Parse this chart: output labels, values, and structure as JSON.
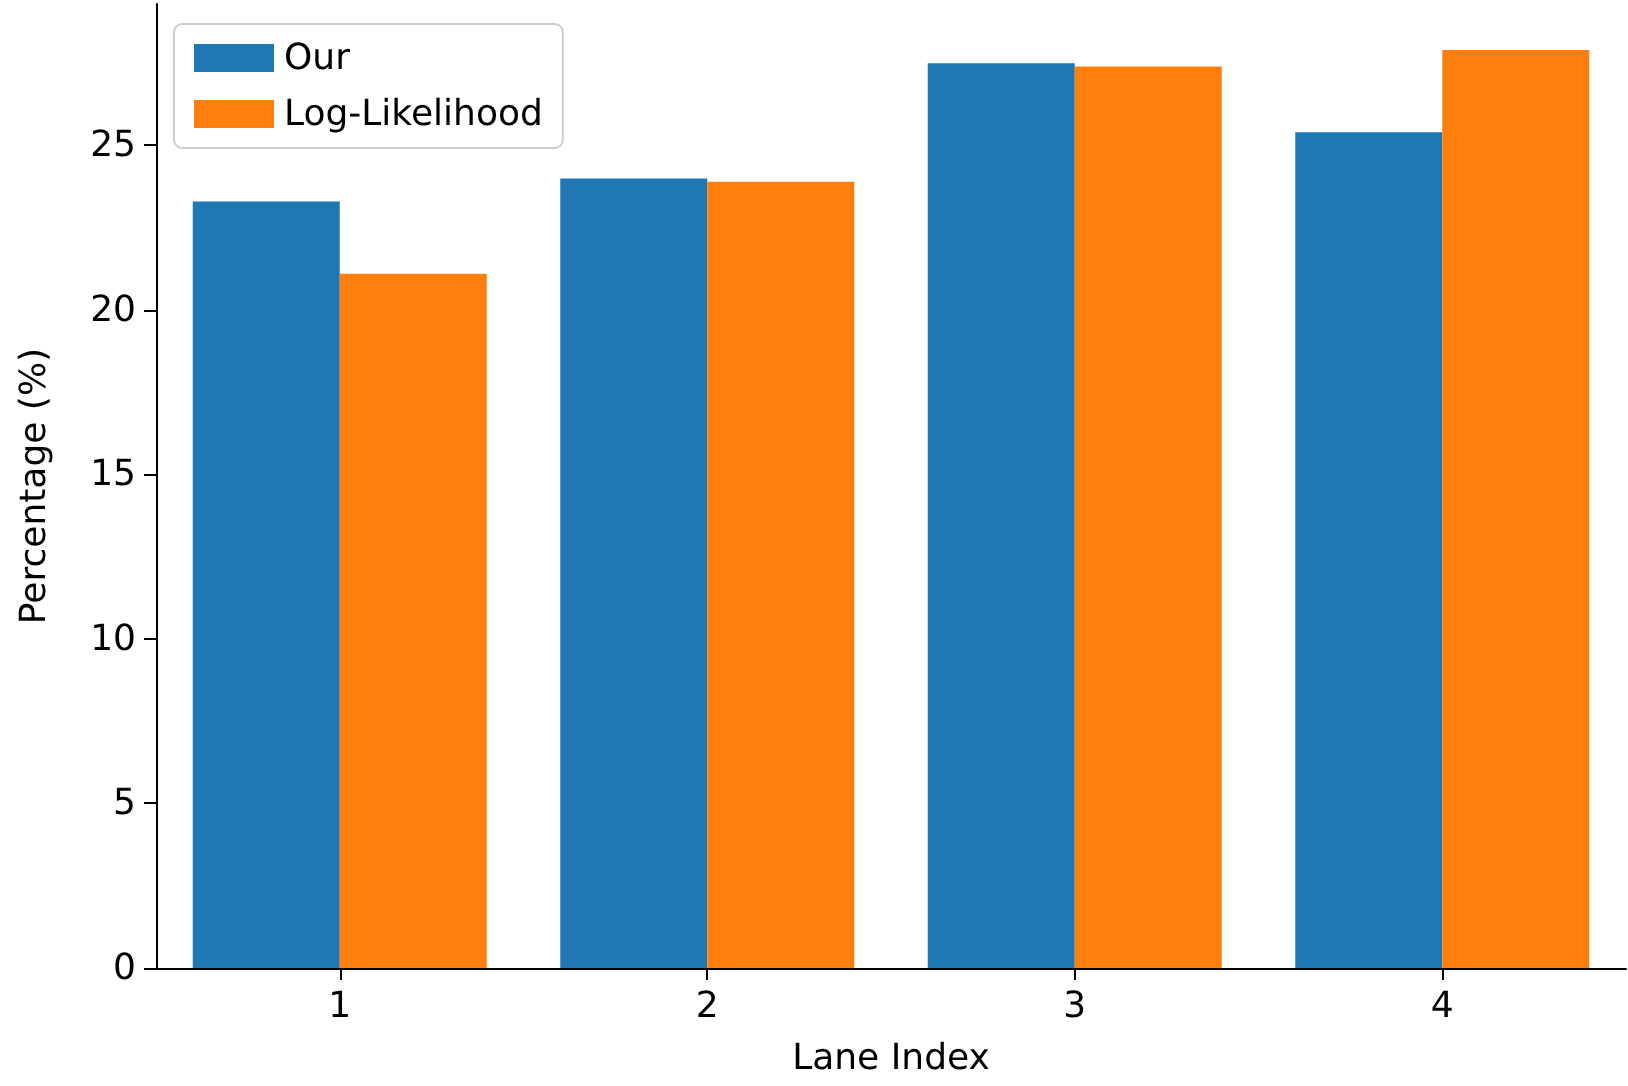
{
  "chart_data": {
    "type": "bar",
    "xlabel": "Lane Index",
    "ylabel": "Percentage (%)",
    "categories": [
      "1",
      "2",
      "3",
      "4"
    ],
    "series": [
      {
        "name": "Our",
        "color": "#1f77b4",
        "values": [
          23.3,
          24.0,
          27.5,
          25.4
        ]
      },
      {
        "name": "Log-Likelihood",
        "color": "#ff7f0e",
        "values": [
          21.1,
          23.9,
          27.4,
          27.9
        ]
      }
    ],
    "ylim": [
      0,
      29.3
    ],
    "yticks": [
      0,
      5,
      10,
      15,
      20,
      25
    ],
    "grid": false,
    "legend": "top left"
  }
}
